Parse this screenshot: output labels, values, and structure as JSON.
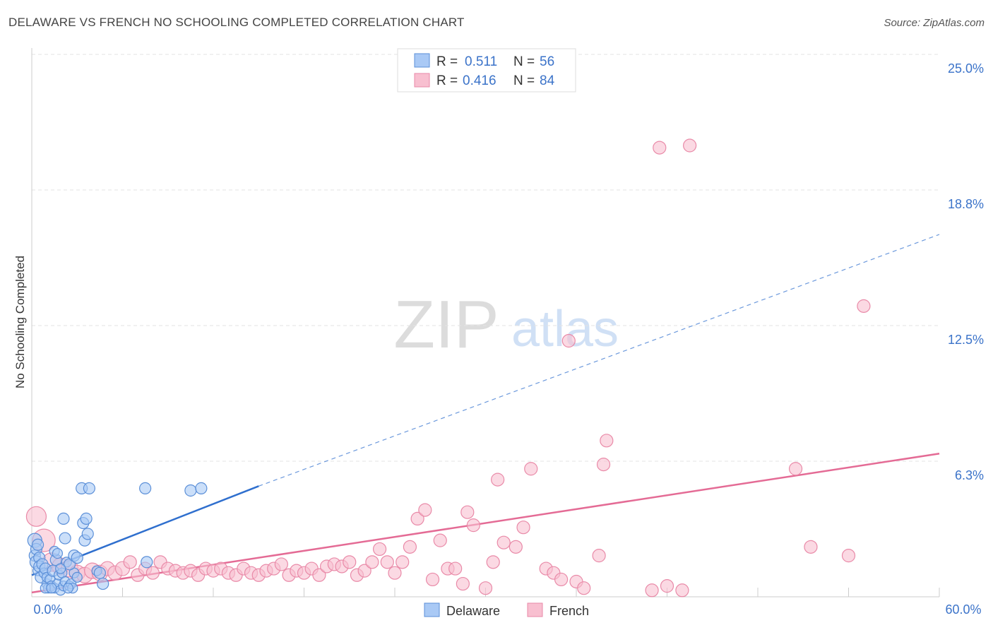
{
  "title": "DELAWARE VS FRENCH NO SCHOOLING COMPLETED CORRELATION CHART",
  "source": "Source: ZipAtlas.com",
  "watermark": {
    "zip": "ZIP",
    "atlas": "atlas"
  },
  "colors": {
    "delaware_fill": "#a9c9f5",
    "delaware_stroke": "#5b8fd8",
    "delaware_line": "#2f6fce",
    "french_fill": "#f8bfd0",
    "french_stroke": "#e98aa8",
    "french_line": "#e46b95",
    "value_text": "#3b73c9",
    "grid": "#e3e3e3"
  },
  "legend": {
    "rows": [
      {
        "r_label": "R =",
        "r_value": "0.511",
        "n_label": "N =",
        "n_value": "56"
      },
      {
        "r_label": "R =",
        "r_value": "0.416",
        "n_label": "N =",
        "n_value": "84"
      }
    ]
  },
  "bottom_legend": {
    "series1": "Delaware",
    "series2": "French"
  },
  "chart_data": {
    "type": "scatter",
    "title": "DELAWARE VS FRENCH NO SCHOOLING COMPLETED CORRELATION CHART",
    "xlabel": "",
    "ylabel": "No Schooling Completed",
    "xlim": [
      0,
      60
    ],
    "ylim": [
      0,
      25
    ],
    "x_tick_labels": [
      "0.0%",
      "60.0%"
    ],
    "y_ticks": [
      6.25,
      12.5,
      18.75,
      25.0
    ],
    "y_tick_labels": [
      "6.3%",
      "12.5%",
      "18.8%",
      "25.0%"
    ],
    "grid": true,
    "legend_position": "top-center",
    "series": [
      {
        "name": "Delaware",
        "R": 0.511,
        "N": 56,
        "trend": {
          "x0": 0,
          "y0": 1.0,
          "x1": 15,
          "y1": 5.1,
          "dashed_to_x": 60,
          "dashed_to_y": 16.7
        },
        "points": [
          [
            0.2,
            2.6,
            10
          ],
          [
            0.2,
            1.9,
            8
          ],
          [
            0.3,
            1.6,
            9
          ],
          [
            0.3,
            2.2,
            8
          ],
          [
            0.4,
            1.2,
            7
          ],
          [
            0.5,
            1.8,
            8
          ],
          [
            0.5,
            1.4,
            8
          ],
          [
            0.6,
            0.9,
            8
          ],
          [
            0.7,
            1.5,
            8
          ],
          [
            0.8,
            1.1,
            7
          ],
          [
            0.9,
            1.3,
            8
          ],
          [
            1.0,
            0.6,
            7
          ],
          [
            1.0,
            0.9,
            7
          ],
          [
            1.1,
            0.4,
            7
          ],
          [
            1.2,
            0.8,
            7
          ],
          [
            1.3,
            0.5,
            7
          ],
          [
            1.4,
            1.2,
            8
          ],
          [
            1.5,
            0.4,
            7
          ],
          [
            1.6,
            1.7,
            8
          ],
          [
            1.7,
            0.6,
            7
          ],
          [
            1.8,
            1.0,
            7
          ],
          [
            1.9,
            0.3,
            7
          ],
          [
            2.0,
            1.1,
            7
          ],
          [
            2.1,
            0.5,
            7
          ],
          [
            2.2,
            0.7,
            7
          ],
          [
            2.3,
            1.6,
            7
          ],
          [
            2.5,
            0.5,
            7
          ],
          [
            2.6,
            0.6,
            7
          ],
          [
            2.7,
            0.4,
            7
          ],
          [
            2.8,
            1.1,
            7
          ],
          [
            1.5,
            2.1,
            7
          ],
          [
            1.7,
            2.0,
            7
          ],
          [
            2.1,
            3.6,
            8
          ],
          [
            2.2,
            2.7,
            8
          ],
          [
            2.5,
            1.5,
            8
          ],
          [
            2.8,
            1.9,
            8
          ],
          [
            3.0,
            1.8,
            8
          ],
          [
            3.3,
            5.0,
            8
          ],
          [
            3.4,
            3.4,
            8
          ],
          [
            3.5,
            2.6,
            8
          ],
          [
            3.6,
            3.6,
            8
          ],
          [
            3.7,
            2.9,
            8
          ],
          [
            3.8,
            5.0,
            8
          ],
          [
            4.3,
            1.2,
            7
          ],
          [
            4.5,
            1.1,
            8
          ],
          [
            4.7,
            0.6,
            8
          ],
          [
            7.5,
            5.0,
            8
          ],
          [
            7.6,
            1.6,
            8
          ],
          [
            10.5,
            4.9,
            8
          ],
          [
            11.2,
            5.0,
            8
          ],
          [
            0.9,
            0.4,
            7
          ],
          [
            1.3,
            0.4,
            7
          ],
          [
            2.4,
            0.4,
            7
          ],
          [
            3.0,
            0.9,
            7
          ],
          [
            0.4,
            2.4,
            8
          ],
          [
            1.9,
            1.3,
            7
          ]
        ]
      },
      {
        "name": "French",
        "R": 0.416,
        "N": 84,
        "trend": {
          "x0": 0,
          "y0": 0.2,
          "x1": 60,
          "y1": 6.6
        },
        "points": [
          [
            0.3,
            3.7,
            14
          ],
          [
            0.8,
            2.6,
            16
          ],
          [
            1.3,
            1.6,
            13
          ],
          [
            1.9,
            1.4,
            12
          ],
          [
            2.5,
            1.3,
            12
          ],
          [
            3.0,
            1.1,
            11
          ],
          [
            3.5,
            1.0,
            11
          ],
          [
            4.0,
            1.2,
            11
          ],
          [
            4.5,
            1.1,
            11
          ],
          [
            5.0,
            1.3,
            10
          ],
          [
            5.5,
            1.1,
            10
          ],
          [
            6.0,
            1.3,
            10
          ],
          [
            6.5,
            1.6,
            9
          ],
          [
            7.0,
            1.0,
            9
          ],
          [
            7.5,
            1.3,
            9
          ],
          [
            8.0,
            1.1,
            9
          ],
          [
            8.5,
            1.6,
            9
          ],
          [
            9.0,
            1.3,
            9
          ],
          [
            9.5,
            1.2,
            9
          ],
          [
            10.0,
            1.1,
            9
          ],
          [
            10.5,
            1.2,
            9
          ],
          [
            11.0,
            1.0,
            9
          ],
          [
            11.5,
            1.3,
            9
          ],
          [
            12.0,
            1.2,
            9
          ],
          [
            12.5,
            1.3,
            9
          ],
          [
            13.0,
            1.1,
            9
          ],
          [
            13.5,
            1.0,
            9
          ],
          [
            14.0,
            1.3,
            9
          ],
          [
            14.5,
            1.1,
            9
          ],
          [
            15.0,
            1.0,
            9
          ],
          [
            15.5,
            1.2,
            9
          ],
          [
            16.0,
            1.3,
            9
          ],
          [
            16.5,
            1.5,
            9
          ],
          [
            17.0,
            1.0,
            9
          ],
          [
            17.5,
            1.2,
            9
          ],
          [
            18.0,
            1.1,
            9
          ],
          [
            18.5,
            1.3,
            9
          ],
          [
            19.0,
            1.0,
            9
          ],
          [
            19.5,
            1.4,
            9
          ],
          [
            20.0,
            1.5,
            9
          ],
          [
            20.5,
            1.4,
            9
          ],
          [
            21.0,
            1.6,
            9
          ],
          [
            21.5,
            1.0,
            9
          ],
          [
            22.0,
            1.2,
            9
          ],
          [
            22.5,
            1.6,
            9
          ],
          [
            23.0,
            2.2,
            9
          ],
          [
            23.5,
            1.6,
            9
          ],
          [
            24.0,
            1.1,
            9
          ],
          [
            24.5,
            1.6,
            9
          ],
          [
            25.0,
            2.3,
            9
          ],
          [
            25.5,
            3.6,
            9
          ],
          [
            26.0,
            4.0,
            9
          ],
          [
            26.5,
            0.8,
            9
          ],
          [
            27.0,
            2.6,
            9
          ],
          [
            27.5,
            1.3,
            9
          ],
          [
            28.0,
            1.3,
            9
          ],
          [
            28.5,
            0.6,
            9
          ],
          [
            28.8,
            3.9,
            9
          ],
          [
            29.2,
            3.3,
            9
          ],
          [
            30.0,
            0.4,
            9
          ],
          [
            30.5,
            1.6,
            9
          ],
          [
            30.8,
            5.4,
            9
          ],
          [
            31.2,
            2.5,
            9
          ],
          [
            32.0,
            2.3,
            9
          ],
          [
            32.5,
            3.2,
            9
          ],
          [
            33.0,
            5.9,
            9
          ],
          [
            34.0,
            1.3,
            9
          ],
          [
            34.5,
            1.1,
            9
          ],
          [
            35.0,
            0.8,
            9
          ],
          [
            35.5,
            11.8,
            9
          ],
          [
            36.0,
            0.7,
            9
          ],
          [
            36.5,
            0.4,
            9
          ],
          [
            37.5,
            1.9,
            9
          ],
          [
            37.8,
            6.1,
            9
          ],
          [
            38.0,
            7.2,
            9
          ],
          [
            41.0,
            0.3,
            9
          ],
          [
            41.5,
            20.7,
            9
          ],
          [
            42.0,
            0.5,
            9
          ],
          [
            43.0,
            0.3,
            9
          ],
          [
            43.5,
            20.8,
            9
          ],
          [
            50.5,
            5.9,
            9
          ],
          [
            51.5,
            2.3,
            9
          ],
          [
            54.0,
            1.9,
            9
          ],
          [
            55.0,
            13.4,
            9
          ]
        ]
      }
    ]
  }
}
